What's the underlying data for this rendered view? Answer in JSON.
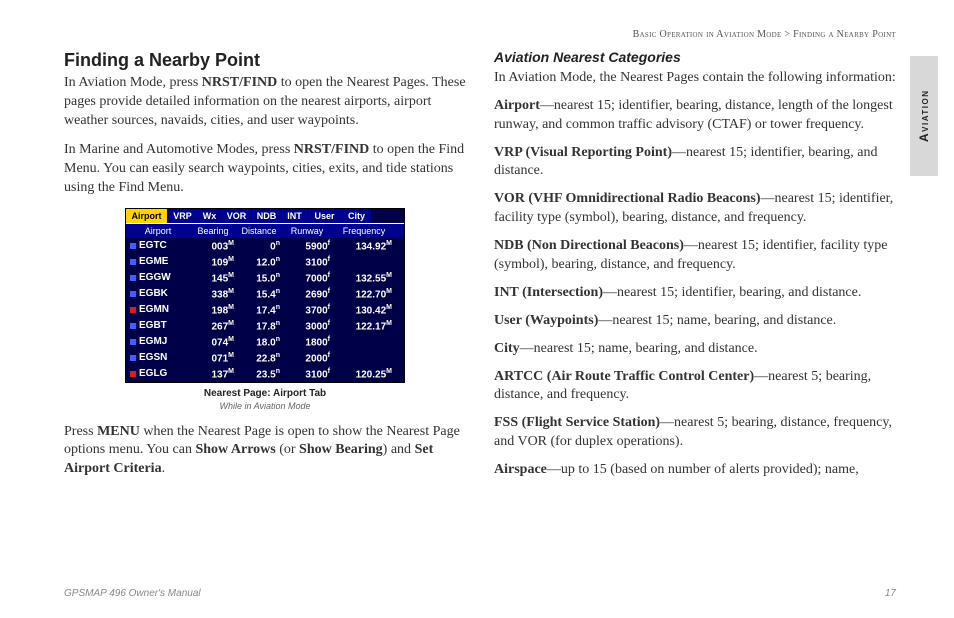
{
  "breadcrumb": {
    "part1": "Basic Operation in Aviation Mode",
    "sep": ">",
    "part2": "Finding a Nearby Point"
  },
  "sideTab": "Aviation",
  "left": {
    "title": "Finding a Nearby Point",
    "p1a": "In Aviation Mode, press ",
    "p1b": "NRST/FIND",
    "p1c": " to open the Nearest Pages. These pages provide detailed information on the nearest airports, airport weather sources, navaids, cities, and user waypoints.",
    "p2a": "In Marine and Automotive Modes, press ",
    "p2b": "NRST/FIND",
    "p2c": " to open the Find Menu. You can easily search waypoints, cities, exits, and tide stations using the Find Menu.",
    "caption": "Nearest Page: Airport Tab",
    "captionSub": "While in Aviation Mode",
    "p3a": "Press ",
    "p3b": "MENU",
    "p3c": " when the Nearest Page is open to show the Nearest Page options menu. You can ",
    "p3d": "Show Arrows",
    "p3e": " (or ",
    "p3f": "Show Bearing",
    "p3g": ") and ",
    "p3h": "Set Airport Criteria",
    "p3i": "."
  },
  "screen": {
    "tabs": [
      "Airport",
      "VRP",
      "Wx",
      "VOR",
      "NDB",
      "INT",
      "User",
      "City"
    ],
    "headers": [
      "Airport",
      "Bearing",
      "Distance",
      "Runway",
      "Frequency"
    ],
    "rows": [
      {
        "dot": "blue",
        "apt": "EGTC",
        "brg": "003",
        "dst": "0",
        "rwy": "5900",
        "frq": "134.92"
      },
      {
        "dot": "blue",
        "apt": "EGME",
        "brg": "109",
        "dst": "12.0",
        "rwy": "3100",
        "frq": ""
      },
      {
        "dot": "blue",
        "apt": "EGGW",
        "brg": "145",
        "dst": "15.0",
        "rwy": "7000",
        "frq": "132.55"
      },
      {
        "dot": "blue",
        "apt": "EGBK",
        "brg": "338",
        "dst": "15.4",
        "rwy": "2690",
        "frq": "122.70"
      },
      {
        "dot": "red",
        "apt": "EGMN",
        "brg": "198",
        "dst": "17.4",
        "rwy": "3700",
        "frq": "130.42"
      },
      {
        "dot": "blue",
        "apt": "EGBT",
        "brg": "267",
        "dst": "17.8",
        "rwy": "3000",
        "frq": "122.17"
      },
      {
        "dot": "blue",
        "apt": "EGMJ",
        "brg": "074",
        "dst": "18.0",
        "rwy": "1800",
        "frq": ""
      },
      {
        "dot": "blue",
        "apt": "EGSN",
        "brg": "071",
        "dst": "22.8",
        "rwy": "2000",
        "frq": ""
      },
      {
        "dot": "red",
        "apt": "EGLG",
        "brg": "137",
        "dst": "23.5",
        "rwy": "3100",
        "frq": "120.25"
      }
    ]
  },
  "right": {
    "subtitle": "Aviation Nearest Categories",
    "intro": "In Aviation Mode, the Nearest Pages contain the following information:",
    "items": [
      {
        "t": "Airport",
        "d": "—nearest 15; identifier, bearing, distance, length of the longest runway, and common traffic advisory (CTAF) or tower frequency."
      },
      {
        "t": "VRP (Visual Reporting Point)",
        "d": "—nearest 15; identifier, bearing, and distance."
      },
      {
        "t": "VOR (VHF Omnidirectional Radio Beacons)",
        "d": "—nearest 15; identifier, facility type (symbol), bearing, distance, and frequency."
      },
      {
        "t": "NDB (Non Directional Beacons)",
        "d": "—nearest 15; identifier, facility type (symbol), bearing, distance, and frequency."
      },
      {
        "t": "INT (Intersection)",
        "d": "—nearest 15; identifier, bearing, and distance."
      },
      {
        "t": "User (Waypoints)",
        "d": "—nearest 15; name, bearing, and distance."
      },
      {
        "t": "City",
        "d": "—nearest 15; name, bearing, and distance."
      },
      {
        "t": "ARTCC (Air Route Traffic Control Center)",
        "d": "—nearest 5; bearing, distance, and frequency."
      },
      {
        "t": "FSS (Flight Service Station)",
        "d": "—nearest 5; bearing, distance, frequency, and VOR (for duplex operations)."
      },
      {
        "t": "Airspace",
        "d": "—up to 15 (based on number of alerts provided); name,"
      }
    ]
  },
  "footer": {
    "left": "GPSMAP 496 Owner's Manual",
    "page": "17"
  }
}
